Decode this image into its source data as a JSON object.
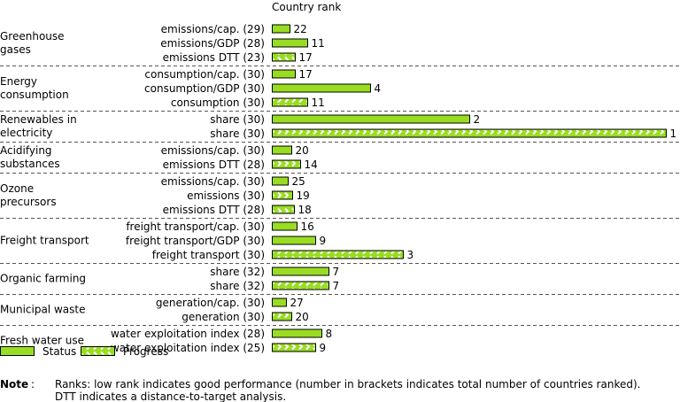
{
  "chart_data": {
    "type": "bar",
    "orientation": "horizontal",
    "title": "Country rank",
    "colors": {
      "bar_fill": "#99dd22",
      "bar_stroke": "#000000",
      "progress_arrow": "#ffffff",
      "separator": "#555555"
    },
    "groups": [
      {
        "label": [
          "Greenhouse",
          "gases"
        ],
        "rows": [
          {
            "label": "emissions/cap. (29)",
            "rank": 22,
            "style": "status"
          },
          {
            "label": "emissions/GDP (28)",
            "rank": 11,
            "style": "status"
          },
          {
            "label": "emissions DTT (23)",
            "rank": 17,
            "style": "progress"
          }
        ]
      },
      {
        "label": [
          "Energy",
          "consumption"
        ],
        "rows": [
          {
            "label": "consumption/cap. (30)",
            "rank": 17,
            "style": "status"
          },
          {
            "label": "consumption/GDP (30)",
            "rank": 4,
            "style": "status"
          },
          {
            "label": "consumption (30)",
            "rank": 11,
            "style": "progress"
          }
        ]
      },
      {
        "label": [
          "Renewables in",
          "electricity"
        ],
        "rows": [
          {
            "label": "share (30)",
            "rank": 2,
            "style": "status"
          },
          {
            "label": "share (30)",
            "rank": 1,
            "style": "progress"
          }
        ]
      },
      {
        "label": [
          "Acidifying",
          "substances"
        ],
        "rows": [
          {
            "label": "emissions/cap. (30)",
            "rank": 20,
            "style": "status"
          },
          {
            "label": "emissions DTT (28)",
            "rank": 14,
            "style": "progress"
          }
        ]
      },
      {
        "label": [
          "Ozone",
          "precursors"
        ],
        "rows": [
          {
            "label": "emissions/cap. (30)",
            "rank": 25,
            "style": "status"
          },
          {
            "label": "emissions (30)",
            "rank": 19,
            "style": "progress"
          },
          {
            "label": "emissions DTT (28)",
            "rank": 18,
            "style": "progress"
          }
        ]
      },
      {
        "label": [
          "Freight transport"
        ],
        "rows": [
          {
            "label": "freight transport/cap. (30)",
            "rank": 16,
            "style": "status"
          },
          {
            "label": "freight transport/GDP (30)",
            "rank": 9,
            "style": "status"
          },
          {
            "label": "freight transport (30)",
            "rank": 3,
            "style": "progress"
          }
        ]
      },
      {
        "label": [
          "Organic farming"
        ],
        "rows": [
          {
            "label": "share (32)",
            "rank": 7,
            "style": "status"
          },
          {
            "label": "share (32)",
            "rank": 7,
            "style": "progress"
          }
        ]
      },
      {
        "label": [
          "Municipal waste"
        ],
        "rows": [
          {
            "label": "generation/cap. (30)",
            "rank": 27,
            "style": "status"
          },
          {
            "label": "generation (30)",
            "rank": 20,
            "style": "progress"
          }
        ]
      },
      {
        "label": [
          "Fresh water use"
        ],
        "rows": [
          {
            "label": "water exploitation index (28)",
            "rank": 8,
            "style": "status"
          },
          {
            "label": "water exploitation index (25)",
            "rank": 9,
            "style": "progress"
          }
        ]
      }
    ],
    "legend": [
      {
        "label": "Status",
        "style": "status"
      },
      {
        "label": "Progress",
        "style": "progress"
      }
    ],
    "note": {
      "label": "Note",
      "lines": [
        "Ranks: low rank indicates good performance (number in brackets indicates total number of countries ranked).",
        "DTT indicates a distance-to-target analysis."
      ]
    }
  }
}
